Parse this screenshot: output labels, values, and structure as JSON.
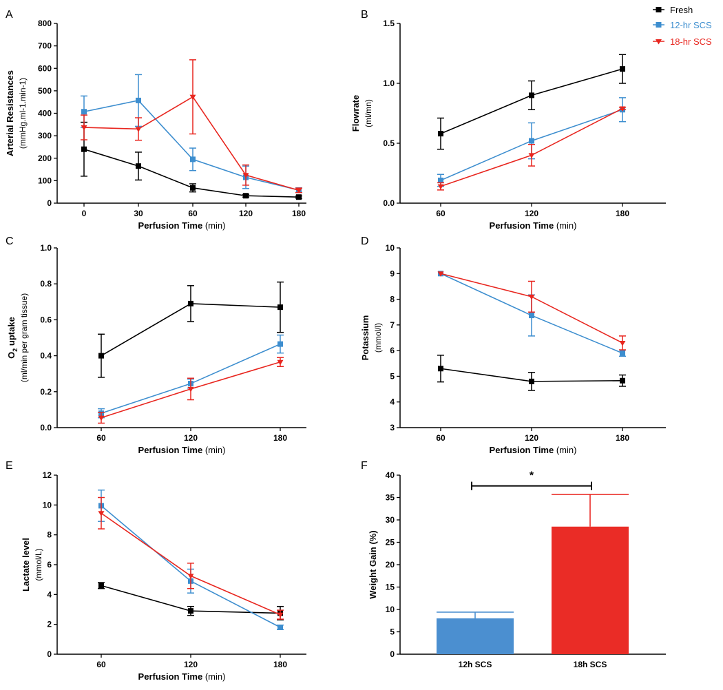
{
  "legend": {
    "position": "top-right",
    "entries": [
      {
        "name": "Fresh",
        "color": "#000000",
        "marker": "square"
      },
      {
        "name": "12-hr SCS",
        "color": "#3d8ecf",
        "marker": "square"
      },
      {
        "name": "18-hr SCS",
        "color": "#e8261f",
        "marker": "triangle-down"
      }
    ]
  },
  "chart_data": [
    {
      "panel": "A",
      "type": "line",
      "xlabel": "Perfusion Time",
      "xunit": "(min)",
      "ylabel": "Arterial Resistances",
      "yunit": "(mmHg.ml-1.min-1)",
      "x_categories": [
        "0",
        "30",
        "60",
        "120",
        "180"
      ],
      "yticks": [
        0,
        100,
        200,
        300,
        400,
        500,
        600,
        700,
        800
      ],
      "ylim": [
        0,
        800
      ],
      "grid": false,
      "series": [
        {
          "name": "Fresh",
          "values": [
            240,
            165,
            68,
            33,
            27
          ],
          "err": [
            120,
            62,
            18,
            6,
            5
          ]
        },
        {
          "name": "12-hr SCS",
          "values": [
            407,
            457,
            195,
            115,
            58
          ],
          "err": [
            70,
            115,
            50,
            50,
            10
          ]
        },
        {
          "name": "18-hr SCS",
          "values": [
            337,
            330,
            473,
            125,
            57
          ],
          "err": [
            55,
            50,
            165,
            45,
            10
          ]
        }
      ]
    },
    {
      "panel": "B",
      "type": "line",
      "xlabel": "Perfusion Time",
      "xunit": "(min)",
      "ylabel": "Flowrate",
      "yunit": "(ml/mn)",
      "x_categories": [
        "60",
        "120",
        "180"
      ],
      "yticks": [
        0.0,
        0.5,
        1.0,
        1.5
      ],
      "ytick_labels": [
        "0.0",
        "0.5",
        "1.0",
        "1.5"
      ],
      "ylim": [
        0,
        1.5
      ],
      "grid": false,
      "series": [
        {
          "name": "Fresh",
          "values": [
            0.58,
            0.9,
            1.12
          ],
          "err": [
            0.13,
            0.12,
            0.12
          ]
        },
        {
          "name": "12-hr SCS",
          "values": [
            0.19,
            0.52,
            0.78
          ],
          "err": [
            0.05,
            0.15,
            0.1
          ]
        },
        {
          "name": "18-hr SCS",
          "values": [
            0.14,
            0.4,
            0.79
          ],
          "err": [
            0.03,
            0.09,
            0.01
          ]
        }
      ]
    },
    {
      "panel": "C",
      "type": "line",
      "xlabel": "Perfusion Time",
      "xunit": "(min)",
      "ylabel": "O",
      "ylabel_sub": "2",
      "ylabel_rest": " uptake",
      "yunit": "(ml/min per gram tissue)",
      "x_categories": [
        "60",
        "120",
        "180"
      ],
      "yticks": [
        0.0,
        0.2,
        0.4,
        0.6,
        0.8,
        1.0
      ],
      "ytick_labels": [
        "0.0",
        "0.2",
        "0.4",
        "0.6",
        "0.8",
        "1.0"
      ],
      "ylim": [
        0,
        1.0
      ],
      "grid": false,
      "series": [
        {
          "name": "Fresh",
          "values": [
            0.4,
            0.69,
            0.67
          ],
          "err": [
            0.12,
            0.1,
            0.14
          ]
        },
        {
          "name": "12-hr SCS",
          "values": [
            0.08,
            0.245,
            0.465
          ],
          "err": [
            0.025,
            0.025,
            0.05
          ]
        },
        {
          "name": "18-hr SCS",
          "values": [
            0.055,
            0.215,
            0.365
          ],
          "err": [
            0.03,
            0.06,
            0.025
          ]
        }
      ]
    },
    {
      "panel": "D",
      "type": "line",
      "xlabel": "Perfusion Time",
      "xunit": "(min)",
      "ylabel": "Potassium",
      "yunit": "(mmol/l)",
      "x_categories": [
        "60",
        "120",
        "180"
      ],
      "yticks": [
        3,
        4,
        5,
        6,
        7,
        8,
        9,
        10
      ],
      "ylim": [
        3,
        10
      ],
      "grid": false,
      "series": [
        {
          "name": "Fresh",
          "values": [
            5.3,
            4.8,
            4.83
          ],
          "err": [
            0.52,
            0.35,
            0.22
          ]
        },
        {
          "name": "12-hr SCS",
          "values": [
            9.0,
            7.37,
            5.9
          ],
          "err": [
            0.0,
            0.8,
            0.12
          ]
        },
        {
          "name": "18-hr SCS",
          "values": [
            9.0,
            8.1,
            6.3
          ],
          "err": [
            0.0,
            0.6,
            0.27
          ]
        }
      ]
    },
    {
      "panel": "E",
      "type": "line",
      "xlabel": "Perfusion Time",
      "xunit": "(min)",
      "ylabel": "Lactate level",
      "yunit": "(mmol/L)",
      "x_categories": [
        "60",
        "120",
        "180"
      ],
      "yticks": [
        0,
        2,
        4,
        6,
        8,
        10,
        12
      ],
      "ylim": [
        0,
        12
      ],
      "grid": false,
      "series": [
        {
          "name": "Fresh",
          "values": [
            4.6,
            2.9,
            2.75
          ],
          "err": [
            0.2,
            0.3,
            0.45
          ]
        },
        {
          "name": "12-hr SCS",
          "values": [
            9.95,
            4.9,
            1.8
          ],
          "err": [
            1.05,
            0.8,
            0.15
          ]
        },
        {
          "name": "18-hr SCS",
          "values": [
            9.45,
            5.25,
            2.65
          ],
          "err": [
            1.05,
            0.85,
            0.3
          ]
        }
      ]
    },
    {
      "panel": "F",
      "type": "bar",
      "ylabel": "Weight Gain (%)",
      "categories": [
        "12h SCS",
        "18h SCS"
      ],
      "values": [
        8.0,
        28.5
      ],
      "err": [
        1.4,
        7.2
      ],
      "colors": [
        "#4b8fd0",
        "#ea2c26"
      ],
      "yticks": [
        0,
        5,
        10,
        15,
        20,
        25,
        30,
        35,
        40
      ],
      "ylim": [
        0,
        40
      ],
      "grid": false,
      "significance": {
        "label": "*",
        "between": [
          "12h SCS",
          "18h SCS"
        ],
        "y": 37.6
      }
    }
  ]
}
